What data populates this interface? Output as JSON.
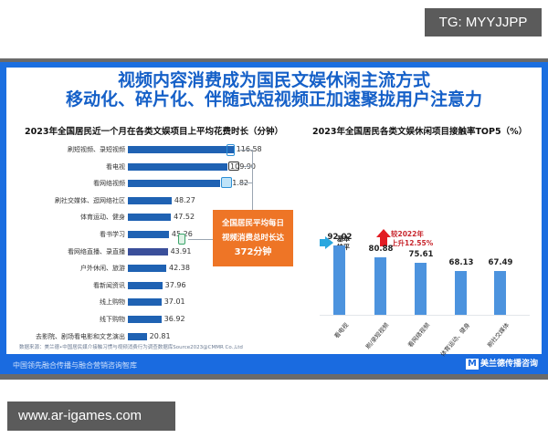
{
  "watermarks": {
    "top_right": "TG: MYYJJPP",
    "bottom_left": "www.ar-igames.com"
  },
  "title": {
    "line1": "视频内容消费成为国民文娱休闲主流方式",
    "line2": "移动化、碎片化、伴随式短视频正加速聚拢用户注意力"
  },
  "left_chart": {
    "subtitle": "2023年全国居民近一个月在各类文娱项目上平均花费时长（分钟）",
    "callout": {
      "line1": "全国居民平均每日",
      "line2": "视频消费总时长达",
      "line3": "372分钟"
    },
    "icons": [
      "mobile-video-icon",
      "tv-icon",
      "web-video-icon",
      "live-stream-icon"
    ]
  },
  "right_chart": {
    "subtitle": "2023年全国居民各类文娱休闲项目接触率TOP5（%）",
    "note_steady": {
      "line1": "基本",
      "line2": "持平"
    },
    "note_up": {
      "line1": "较2022年",
      "line2": "上升12.55%"
    }
  },
  "source": "数据来源：美兰德•中国居民媒介接触习惯与视频消费行为调查数据库Source2023@CMMR Co.,Ltd",
  "footer": {
    "left": "中国领先融合传播与融合营销咨询智库",
    "logo_letter": "M",
    "right": "美兰德传播咨询"
  },
  "colors": {
    "title_blue": "#1560c8",
    "frame_blue": "#1a6be0",
    "hbar": "#1f62b3",
    "vbar": "#4c93de",
    "callout_orange": "#ee7526",
    "up_red": "#e21c23",
    "steady_cyan": "#2aa7df"
  },
  "chart_data": [
    {
      "type": "bar",
      "orientation": "horizontal",
      "title": "2023年全国居民近一个月在各类文娱项目上平均花费时长（分钟）",
      "xlabel": "",
      "ylabel": "",
      "categories": [
        "刷短视频、录短视频",
        "看电视",
        "看网络视频",
        "刷社交媒体、逛网络社区",
        "体育运动、健身",
        "看书学习",
        "看网络直播、录直播",
        "户外休闲、旅游",
        "看新闻资讯",
        "线上购物",
        "线下购物",
        "去影院、剧场看电影和文艺演出"
      ],
      "values": [
        116.58,
        109.9,
        101.82,
        48.27,
        47.52,
        45.26,
        43.91,
        42.38,
        37.96,
        37.01,
        36.92,
        20.81
      ],
      "annotations": [
        "全国居民平均每日视频消费总时长达372分钟"
      ],
      "grid": false,
      "legend": null
    },
    {
      "type": "bar",
      "orientation": "vertical",
      "title": "2023年全国居民各类文娱休闲项目接触率TOP5（%）",
      "xlabel": "",
      "ylabel": "%",
      "categories": [
        "看电视",
        "刷/录短视频",
        "看网络视频",
        "体育运动、健身",
        "刷社交媒体"
      ],
      "values": [
        92.02,
        80.88,
        75.61,
        68.13,
        67.49
      ],
      "annotations": [
        "基本持平",
        "较2022年上升12.55%"
      ],
      "grid": false,
      "legend": null,
      "ylim": [
        0,
        100
      ]
    }
  ]
}
